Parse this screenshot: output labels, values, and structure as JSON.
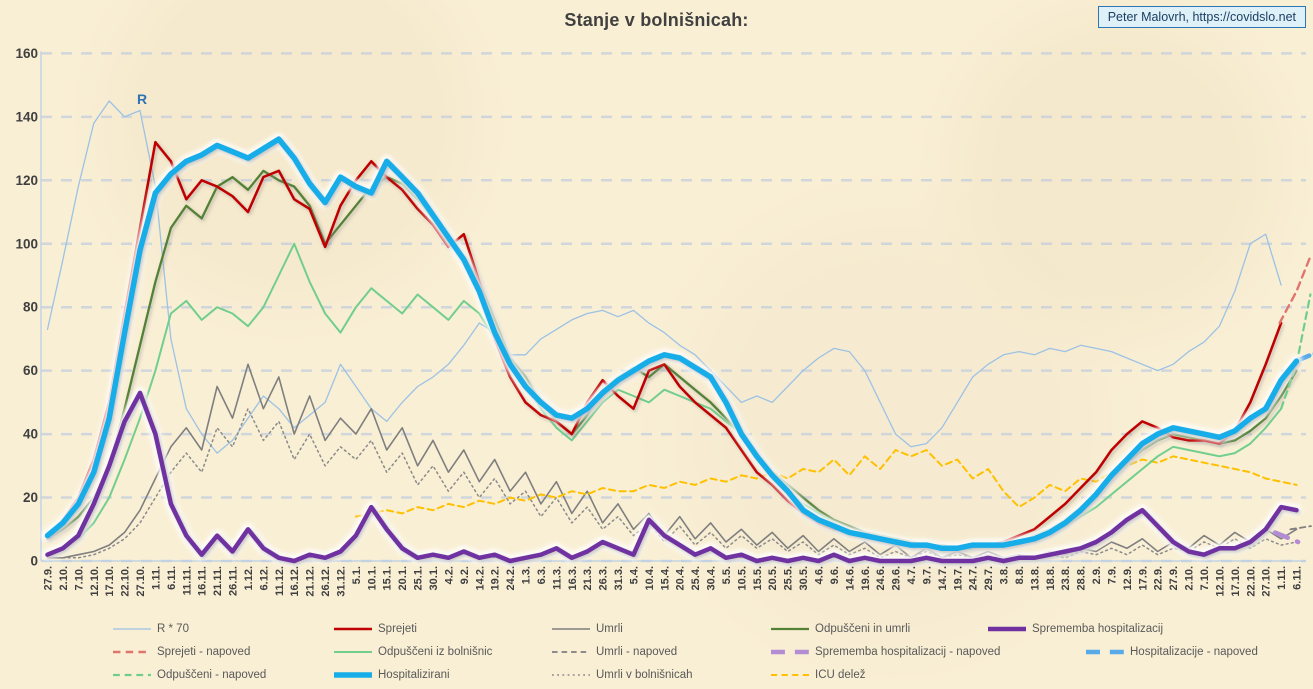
{
  "header": {
    "title": "Stanje v bolnišnicah:",
    "credit": "Peter Malovrh, https://covidslo.net"
  },
  "annotations": {
    "r_label": "R"
  },
  "colors": {
    "background": "#f9efd5",
    "grid": "#c7d0dd",
    "axis": "#b9cfe8",
    "tick_label": "#3f3f3f",
    "title": "#404040",
    "legend_text": "#595959",
    "credit_bg": "#def1f8",
    "credit_border": "#2e75b6",
    "credit_text": "#1c3e63",
    "annotation_r": "#2e74b5"
  },
  "chart_data": {
    "type": "line",
    "title": "Stanje v bolnišnicah:",
    "xlabel": "",
    "ylabel": "",
    "ylim": [
      0,
      160
    ],
    "y_ticks": [
      0,
      20,
      40,
      60,
      80,
      100,
      120,
      140,
      160
    ],
    "grid": "horizontal-dashed",
    "legend_position": "bottom",
    "categories": [
      "27.9.",
      "2.10.",
      "7.10.",
      "12.10.",
      "17.10.",
      "22.10.",
      "27.10.",
      "1.11.",
      "6.11.",
      "11.11.",
      "16.11.",
      "21.11.",
      "26.11.",
      "1.12.",
      "6.12.",
      "11.12.",
      "16.12.",
      "21.12.",
      "26.12.",
      "31.12.",
      "5.1.",
      "10.1.",
      "15.1.",
      "20.1.",
      "25.1.",
      "30.1.",
      "4.2.",
      "9.2.",
      "14.2.",
      "19.2.",
      "24.2.",
      "1.3.",
      "6.3.",
      "11.3.",
      "16.3.",
      "21.3.",
      "26.3.",
      "31.3.",
      "5.4.",
      "10.4.",
      "15.4.",
      "20.4.",
      "25.4.",
      "30.4.",
      "5.5.",
      "10.5.",
      "15.5.",
      "20.5.",
      "25.5.",
      "30.5.",
      "4.6.",
      "9.6.",
      "14.6.",
      "19.6.",
      "24.6.",
      "29.6.",
      "4.7.",
      "9.7.",
      "14.7.",
      "19.7.",
      "24.7.",
      "29.7.",
      "3.8.",
      "8.8.",
      "13.8.",
      "18.8.",
      "23.8.",
      "28.8.",
      "2.9.",
      "7.9.",
      "12.9.",
      "17.9.",
      "22.9.",
      "27.9.",
      "2.10.",
      "7.10.",
      "12.10.",
      "17.10.",
      "22.10.",
      "27.10.",
      "1.11.",
      "6.11."
    ],
    "series": [
      {
        "name": "R * 70",
        "color": "#9cc2e5",
        "width": 1.3,
        "style": "solid",
        "values": [
          73,
          95,
          118,
          138,
          145,
          140,
          142,
          118,
          70,
          48,
          40,
          34,
          38,
          45,
          52,
          48,
          42,
          46,
          50,
          62,
          55,
          48,
          44,
          50,
          55,
          58,
          62,
          68,
          75,
          72,
          65,
          65,
          70,
          73,
          76,
          78,
          79,
          77,
          79,
          75,
          72,
          68,
          65,
          60,
          55,
          50,
          52,
          50,
          55,
          60,
          64,
          67,
          66,
          60,
          50,
          40,
          36,
          37,
          42,
          50,
          58,
          62,
          65,
          66,
          65,
          67,
          66,
          68,
          67,
          66,
          64,
          62,
          60,
          62,
          66,
          69,
          74,
          85,
          100,
          103,
          87,
          null
        ]
      },
      {
        "name": "Umrli v bolnišnicah",
        "color": "#8a8a8a",
        "width": 1.5,
        "style": "dotted",
        "values": [
          1,
          1,
          1,
          2,
          4,
          7,
          12,
          20,
          28,
          34,
          28,
          42,
          36,
          48,
          38,
          44,
          32,
          40,
          30,
          36,
          32,
          38,
          28,
          34,
          24,
          30,
          22,
          28,
          20,
          26,
          18,
          22,
          14,
          20,
          12,
          17,
          10,
          14,
          8,
          12,
          6,
          11,
          5,
          9,
          4,
          8,
          4,
          7,
          3,
          6,
          2,
          5,
          2,
          4,
          1,
          3,
          1,
          3,
          1,
          2,
          1,
          2,
          1,
          2,
          1,
          2,
          1,
          3,
          2,
          4,
          2,
          5,
          2,
          4,
          3,
          6,
          4,
          7,
          4,
          7,
          5,
          6
        ]
      },
      {
        "name": "Umrli",
        "color": "#7f7f7f",
        "width": 1.6,
        "style": "solid",
        "values": [
          1,
          1,
          2,
          3,
          5,
          9,
          16,
          26,
          36,
          42,
          35,
          55,
          45,
          62,
          48,
          58,
          40,
          52,
          38,
          45,
          40,
          48,
          35,
          42,
          30,
          38,
          28,
          35,
          25,
          32,
          22,
          28,
          18,
          25,
          15,
          22,
          12,
          18,
          10,
          15,
          8,
          14,
          7,
          12,
          6,
          10,
          5,
          9,
          4,
          8,
          3,
          7,
          3,
          6,
          2,
          5,
          1,
          4,
          1,
          3,
          1,
          3,
          1,
          2,
          1,
          3,
          2,
          4,
          3,
          6,
          4,
          7,
          3,
          6,
          4,
          8,
          5,
          9,
          6,
          10,
          7,
          10
        ]
      },
      {
        "name": "Umrli - napoved",
        "color": "#7f7f7f",
        "width": 1.8,
        "style": "dashed",
        "points": [
          [
            80.6,
            10
          ],
          [
            82.0,
            11
          ]
        ]
      },
      {
        "name": "ICU delež",
        "color": "#ffc000",
        "width": 2,
        "style": "dashed",
        "values": [
          null,
          null,
          null,
          null,
          null,
          null,
          null,
          null,
          null,
          null,
          null,
          null,
          null,
          null,
          null,
          null,
          null,
          null,
          null,
          null,
          14,
          15,
          16,
          15,
          17,
          16,
          18,
          17,
          19,
          18,
          20,
          19,
          21,
          20,
          22,
          21,
          23,
          22,
          22,
          24,
          23,
          25,
          24,
          26,
          25,
          27,
          26,
          28,
          26,
          29,
          28,
          32,
          27,
          33,
          29,
          35,
          33,
          35,
          30,
          32,
          26,
          29,
          22,
          17,
          20,
          24,
          22,
          26,
          25,
          28,
          30,
          32,
          31,
          33,
          32,
          31,
          30,
          29,
          28,
          26,
          25,
          24
        ]
      },
      {
        "name": "Odpuščeni iz bolnišnic",
        "color": "#71ce8d",
        "width": 2,
        "style": "solid",
        "values": [
          2,
          4,
          7,
          12,
          20,
          32,
          45,
          60,
          78,
          82,
          76,
          80,
          78,
          74,
          80,
          90,
          100,
          88,
          78,
          72,
          80,
          86,
          82,
          78,
          84,
          80,
          76,
          82,
          78,
          70,
          62,
          55,
          48,
          42,
          38,
          44,
          50,
          54,
          52,
          50,
          54,
          52,
          50,
          48,
          44,
          40,
          34,
          28,
          22,
          18,
          15,
          12,
          10,
          8,
          7,
          6,
          5,
          5,
          4,
          4,
          4,
          5,
          5,
          6,
          7,
          9,
          11,
          14,
          17,
          21,
          25,
          29,
          33,
          36,
          35,
          34,
          33,
          34,
          37,
          42,
          48,
          null
        ]
      },
      {
        "name": "Odpuščeni in umrli",
        "color": "#538135",
        "width": 2.3,
        "style": "solid",
        "shadow": true,
        "values": [
          7,
          10,
          14,
          20,
          30,
          48,
          68,
          88,
          105,
          112,
          108,
          118,
          121,
          117,
          123,
          120,
          118,
          112,
          100,
          106,
          112,
          118,
          121,
          119,
          114,
          108,
          100,
          96,
          88,
          76,
          64,
          58,
          50,
          44,
          40,
          46,
          54,
          58,
          61,
          58,
          62,
          58,
          54,
          50,
          45,
          40,
          34,
          28,
          24,
          20,
          16,
          13,
          11,
          9,
          8,
          7,
          6,
          5,
          5,
          4,
          4,
          5,
          5,
          6,
          8,
          10,
          13,
          17,
          21,
          26,
          31,
          35,
          38,
          40,
          39,
          38,
          37,
          38,
          41,
          45,
          52,
          60
        ]
      },
      {
        "name": "Sprejeti",
        "color": "#c00000",
        "width": 2.6,
        "style": "solid",
        "shadow": true,
        "values": [
          8,
          13,
          20,
          32,
          50,
          78,
          105,
          132,
          126,
          114,
          120,
          118,
          115,
          110,
          121,
          123,
          114,
          111,
          99,
          112,
          120,
          126,
          121,
          117,
          111,
          106,
          99,
          103,
          88,
          70,
          58,
          50,
          46,
          44,
          40,
          50,
          57,
          52,
          48,
          60,
          62,
          55,
          50,
          46,
          42,
          35,
          28,
          24,
          19,
          15,
          12,
          10,
          9,
          8,
          7,
          6,
          5,
          5,
          4,
          4,
          5,
          5,
          6,
          8,
          10,
          14,
          18,
          23,
          28,
          35,
          40,
          44,
          42,
          39,
          38,
          38,
          37,
          41,
          50,
          62,
          75,
          null
        ]
      },
      {
        "name": "Sprejeti - napoved",
        "color": "#e0756d",
        "width": 2.4,
        "style": "dashed",
        "points": [
          [
            79.9,
            75
          ],
          [
            81.0,
            85
          ],
          [
            81.9,
            96
          ]
        ]
      },
      {
        "name": "Odpuščeni - napoved",
        "color": "#6fcd8a",
        "width": 2.2,
        "style": "dashed",
        "points": [
          [
            80.0,
            48
          ],
          [
            81.0,
            62
          ],
          [
            81.9,
            84
          ]
        ]
      },
      {
        "name": "Sprememba hospitalizacij - napoved",
        "color": "#b48cd4",
        "width": 4.5,
        "style": "dashed",
        "points": [
          [
            79.6,
            9
          ],
          [
            81.1,
            6
          ]
        ]
      },
      {
        "name": "Sprememba hospitalizacij",
        "color": "#7030a0",
        "width": 4.5,
        "style": "solid",
        "glow": "white",
        "shadow": true,
        "values": [
          2,
          4,
          8,
          18,
          30,
          44,
          53,
          40,
          18,
          8,
          2,
          8,
          3,
          10,
          4,
          1,
          0,
          2,
          1,
          3,
          8,
          17,
          10,
          4,
          1,
          2,
          1,
          3,
          1,
          2,
          0,
          1,
          2,
          4,
          1,
          3,
          6,
          4,
          2,
          13,
          8,
          5,
          2,
          4,
          1,
          2,
          0,
          1,
          0,
          1,
          0,
          2,
          0,
          1,
          0,
          0,
          0,
          1,
          0,
          0,
          0,
          1,
          0,
          1,
          1,
          2,
          3,
          4,
          6,
          9,
          13,
          16,
          11,
          6,
          3,
          2,
          4,
          4,
          6,
          10,
          17,
          16
        ]
      },
      {
        "name": "Hospitalizacije - napoved",
        "color": "#58abe8",
        "width": 4.5,
        "style": "dashed",
        "end_dot": true,
        "points": [
          [
            81.0,
            63
          ],
          [
            82.1,
            65
          ]
        ]
      },
      {
        "name": "Hospitalizirani",
        "color": "#16ade8",
        "width": 5.5,
        "style": "solid",
        "glow": "white",
        "shadow": true,
        "values": [
          8,
          12,
          18,
          28,
          45,
          72,
          98,
          116,
          122,
          126,
          128,
          131,
          129,
          127,
          130,
          133,
          127,
          119,
          113,
          121,
          118,
          116,
          126,
          121,
          116,
          109,
          102,
          95,
          85,
          72,
          62,
          55,
          50,
          46,
          45,
          48,
          53,
          57,
          60,
          63,
          65,
          64,
          61,
          58,
          50,
          40,
          33,
          27,
          22,
          16,
          13,
          11,
          9,
          8,
          7,
          6,
          5,
          5,
          4,
          4,
          5,
          5,
          5,
          6,
          7,
          9,
          12,
          16,
          21,
          27,
          32,
          37,
          40,
          42,
          41,
          40,
          39,
          41,
          45,
          48,
          57,
          63
        ]
      }
    ],
    "legend": [
      {
        "label": "R * 70",
        "color": "#9cc2e5",
        "width": 1.3,
        "style": "solid",
        "row": 0,
        "col": 0
      },
      {
        "label": "Sprejeti",
        "color": "#c00000",
        "width": 2.6,
        "style": "solid",
        "row": 0,
        "col": 1
      },
      {
        "label": "Umrli",
        "color": "#7f7f7f",
        "width": 1.6,
        "style": "solid",
        "row": 0,
        "col": 2
      },
      {
        "label": "Odpuščeni in umrli",
        "color": "#538135",
        "width": 2.3,
        "style": "solid",
        "row": 0,
        "col": 3
      },
      {
        "label": "Sprememba hospitalizacij",
        "color": "#7030a0",
        "width": 4.5,
        "style": "solid",
        "row": 0,
        "col": 4
      },
      {
        "label": "Sprejeti - napoved",
        "color": "#e0756d",
        "width": 2.4,
        "style": "dashed",
        "row": 1,
        "col": 0
      },
      {
        "label": "Odpuščeni iz bolnišnic",
        "color": "#71ce8d",
        "width": 2.0,
        "style": "solid",
        "row": 1,
        "col": 1
      },
      {
        "label": "Umrli - napoved",
        "color": "#7f7f7f",
        "width": 1.8,
        "style": "dashed",
        "row": 1,
        "col": 2
      },
      {
        "label": "Sprememba hospitalizacij - napoved",
        "color": "#b48cd4",
        "width": 4.5,
        "style": "dashed",
        "row": 1,
        "col": 3
      },
      {
        "label": "Hospitalizacije - napoved",
        "color": "#58abe8",
        "width": 4.5,
        "style": "dashed",
        "row": 1,
        "col": 4
      },
      {
        "label": "Odpuščeni - napoved",
        "color": "#6fcd8a",
        "width": 2.2,
        "style": "dashed",
        "row": 2,
        "col": 0
      },
      {
        "label": "Hospitalizirani",
        "color": "#16ade8",
        "width": 5.5,
        "style": "solid",
        "row": 2,
        "col": 1
      },
      {
        "label": "Umrli v bolnišnicah",
        "color": "#8a8a8a",
        "width": 1.5,
        "style": "dotted",
        "row": 2,
        "col": 2
      },
      {
        "label": "ICU delež",
        "color": "#ffc000",
        "width": 2.0,
        "style": "dashed",
        "row": 2,
        "col": 3
      }
    ]
  }
}
